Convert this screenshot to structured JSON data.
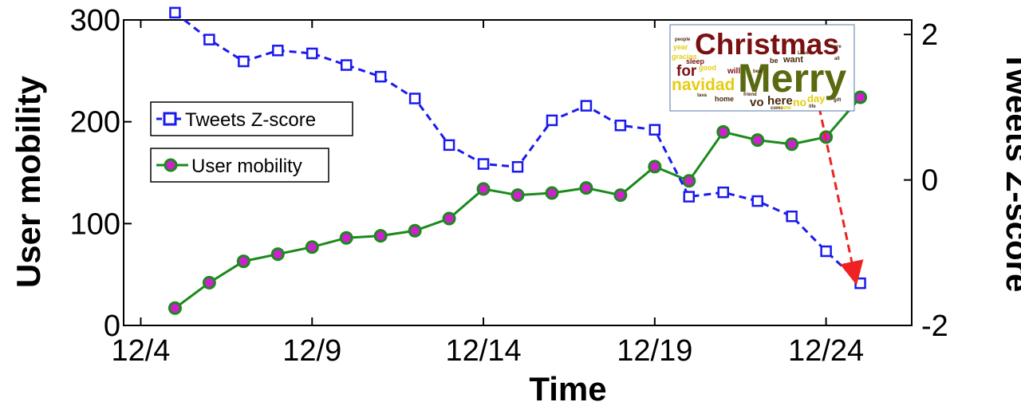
{
  "chart_data": {
    "type": "line",
    "xlabel": "Time",
    "ylabel_left": "User mobility",
    "ylabel_right": "Tweets Z-score",
    "x_tick_labels": [
      "12/4",
      "12/9",
      "12/14",
      "12/19",
      "12/24"
    ],
    "x_tick_days": [
      4,
      9,
      14,
      19,
      24
    ],
    "xlim": [
      3.5,
      26.5
    ],
    "ylim_left": [
      0,
      300
    ],
    "ylim_right": [
      -2,
      2.2
    ],
    "yticks_left": [
      0,
      100,
      200,
      300
    ],
    "yticks_right": [
      -2,
      0,
      2
    ],
    "y_tick_labels_left": [
      "0",
      "100",
      "200",
      "300"
    ],
    "y_tick_labels_right": [
      "-2",
      "0",
      "2"
    ],
    "legend_placement": "left",
    "grid": false,
    "series": [
      {
        "name": "Tweets Z-score",
        "axis": "right",
        "color": "#1a1aee",
        "marker": "square",
        "line_style": "dashed",
        "x": [
          5,
          6,
          7,
          8,
          9,
          10,
          11,
          12,
          13,
          14,
          15,
          16,
          17,
          18,
          19,
          20,
          21,
          22,
          23,
          24,
          25
        ],
        "values": [
          2.3,
          1.93,
          1.63,
          1.78,
          1.74,
          1.58,
          1.42,
          1.12,
          0.48,
          0.22,
          0.18,
          0.82,
          1.02,
          0.75,
          0.69,
          -0.23,
          -0.17,
          -0.29,
          -0.5,
          -0.98,
          -1.42
        ]
      },
      {
        "name": "User mobility",
        "axis": "left",
        "color": "#1a8a1a",
        "marker_fill": "#cc22cc",
        "marker": "circle",
        "line_style": "solid",
        "x": [
          5,
          6,
          7,
          8,
          9,
          10,
          11,
          12,
          13,
          14,
          15,
          16,
          17,
          18,
          19,
          20,
          21,
          22,
          23,
          24,
          25
        ],
        "values": [
          17,
          42,
          63,
          70,
          77,
          86,
          88,
          93,
          105,
          134,
          128,
          130,
          135,
          128,
          156,
          142,
          190,
          182,
          178,
          185,
          224
        ]
      }
    ],
    "annotations": [
      {
        "type": "arrow",
        "color": "#ee2222",
        "line_style": "dashed",
        "from": {
          "x": 23.8,
          "y_right": 1.0
        },
        "to": {
          "x": 24.85,
          "y_right": -1.35
        }
      }
    ],
    "inset_word_cloud": {
      "words_large": [
        "Christmas",
        "Merry",
        "navidad",
        "for"
      ],
      "words_medium": [
        "here",
        "vo",
        "no",
        "day",
        "want",
        "be",
        "will",
        "sleep",
        "home",
        "good",
        "year",
        "gracias"
      ],
      "words_small": [
        "people",
        "Love",
        "best",
        "friend",
        "tava",
        "come",
        "now",
        "life",
        "gift",
        "more",
        "all"
      ]
    }
  }
}
